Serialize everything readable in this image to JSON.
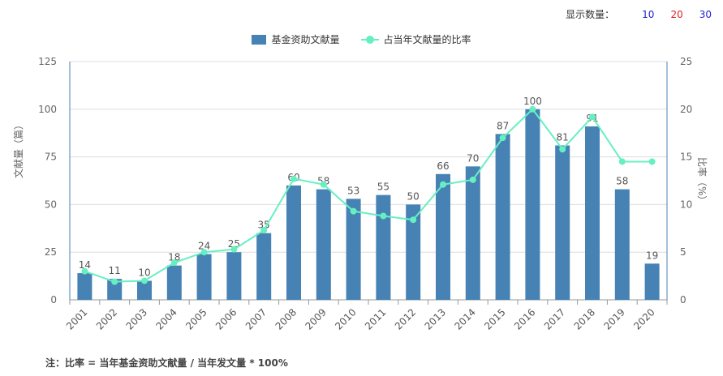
{
  "display_count": {
    "label": "显示数量：",
    "options": [
      "10",
      "20",
      "30"
    ],
    "option_colors": [
      "#2222cc",
      "#dd2222",
      "#2222cc"
    ]
  },
  "legend": {
    "bar_label": "基金资助文献量",
    "line_label": "占当年文献量的比率"
  },
  "colors": {
    "bar": "#4682b4",
    "line": "#66f0c2",
    "axis": "#4682b4",
    "grid": "#dddddd"
  },
  "footnote": "注：比率 = 当年基金资助文献量 / 当年发文量 * 100%",
  "chart_data": {
    "type": "bar",
    "categories": [
      "2001",
      "2002",
      "2003",
      "2004",
      "2005",
      "2006",
      "2007",
      "2008",
      "2009",
      "2010",
      "2011",
      "2012",
      "2013",
      "2014",
      "2015",
      "2016",
      "2017",
      "2018",
      "2019",
      "2020"
    ],
    "series": [
      {
        "name": "基金资助文献量",
        "type": "bar",
        "axis": "left",
        "values": [
          14,
          11,
          10,
          18,
          24,
          25,
          35,
          60,
          58,
          53,
          55,
          50,
          66,
          70,
          87,
          100,
          81,
          91,
          58,
          19
        ]
      },
      {
        "name": "占当年文献量的比率",
        "type": "line",
        "axis": "right",
        "values": [
          3.0,
          1.9,
          2.0,
          3.9,
          5.0,
          5.3,
          7.3,
          12.7,
          12.1,
          9.3,
          8.8,
          8.4,
          12.1,
          12.6,
          17.0,
          20.0,
          15.8,
          19.2,
          14.5,
          14.5
        ]
      }
    ],
    "ylabel": "文献量（篇）",
    "y2label": "比率（%）",
    "ylim": [
      0,
      125
    ],
    "y2lim": [
      0,
      25
    ],
    "yticks": [
      "0",
      "25",
      "50",
      "75",
      "100",
      "125"
    ],
    "y2ticks": [
      "0",
      "5",
      "10",
      "15",
      "20",
      "25"
    ],
    "grid": true,
    "legend_position": "top-center",
    "bar_data_labels": true
  }
}
